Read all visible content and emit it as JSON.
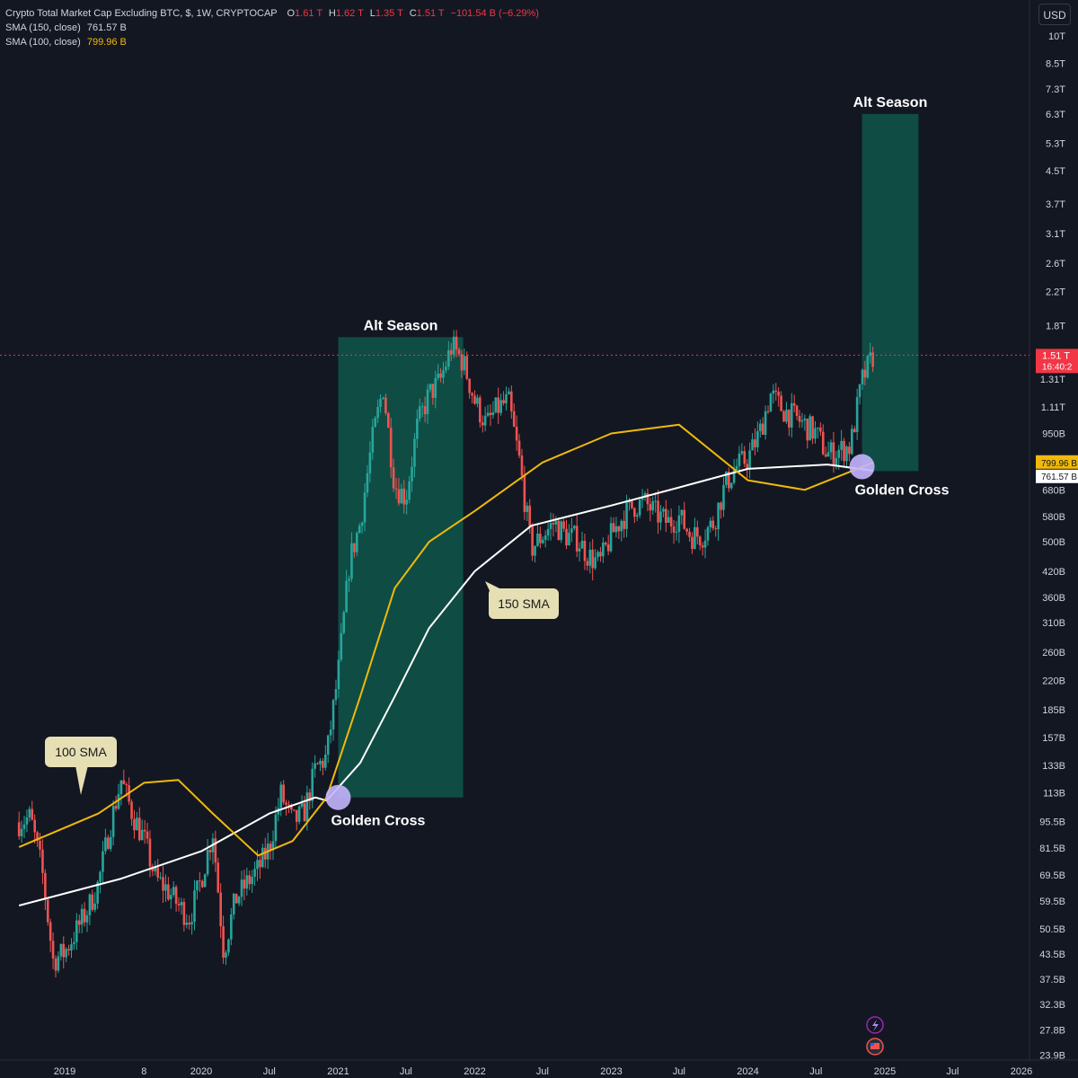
{
  "header": {
    "symbol_title": "Crypto Total Market Cap Excluding BTC, $, 1W, CRYPTOCAP",
    "ohlc": {
      "o_label": "O",
      "o_value": "1.61 T",
      "h_label": "H",
      "h_value": "1.62 T",
      "l_label": "L",
      "l_value": "1.35 T",
      "c_label": "C",
      "c_value": "1.51 T",
      "change": "−101.54 B (−6.29%)"
    },
    "sma150_label": "SMA (150, close)",
    "sma150_value": "761.57 B",
    "sma100_label": "SMA (100, close)",
    "sma100_value": "799.96 B"
  },
  "currency_button": "USD",
  "colors": {
    "background": "#131722",
    "up": "#26a69a",
    "down": "#ef5350",
    "sma150": "#ffffff",
    "sma100": "#f0b90b",
    "alt_season_box": "#0f4f47",
    "golden_cross_marker": "#c4b5fd",
    "callout_fill": "#e6dfb4"
  },
  "price_badge": {
    "value": "1.51 T",
    "countdown": "16:40:2"
  },
  "sma_badges": {
    "sma100": "799.96 B",
    "sma150": "761.57 B"
  },
  "chart_data": {
    "type": "candlestick",
    "timeframe": "1W",
    "y_scale": "log",
    "y_ticks": [
      "10T",
      "8.5T",
      "7.3T",
      "6.3T",
      "5.3T",
      "4.5T",
      "3.7T",
      "3.1T",
      "2.6T",
      "2.2T",
      "1.8T",
      "1.31T",
      "1.11T",
      "950B",
      "680B",
      "580B",
      "500B",
      "420B",
      "360B",
      "310B",
      "260B",
      "220B",
      "185B",
      "157B",
      "133B",
      "113B",
      "95.5B",
      "81.5B",
      "69.5B",
      "59.5B",
      "50.5B",
      "43.5B",
      "37.5B",
      "32.3B",
      "27.8B",
      "23.9B"
    ],
    "x_ticks": [
      "2019",
      "8",
      "2020",
      "Jul",
      "2021",
      "Jul",
      "2022",
      "Jul",
      "2023",
      "Jul",
      "2024",
      "Jul",
      "2025",
      "Jul",
      "2026"
    ],
    "close_path_billion": [
      {
        "date": "2018-09",
        "value": 95
      },
      {
        "date": "2018-10",
        "value": 98
      },
      {
        "date": "2018-11",
        "value": 72
      },
      {
        "date": "2018-12",
        "value": 42
      },
      {
        "date": "2019-01",
        "value": 44
      },
      {
        "date": "2019-02",
        "value": 50
      },
      {
        "date": "2019-03",
        "value": 56
      },
      {
        "date": "2019-04",
        "value": 66
      },
      {
        "date": "2019-05",
        "value": 92
      },
      {
        "date": "2019-06",
        "value": 122
      },
      {
        "date": "2019-07",
        "value": 100
      },
      {
        "date": "2019-08",
        "value": 86
      },
      {
        "date": "2019-09",
        "value": 68
      },
      {
        "date": "2019-10",
        "value": 64
      },
      {
        "date": "2019-11",
        "value": 58
      },
      {
        "date": "2019-12",
        "value": 54
      },
      {
        "date": "2020-01",
        "value": 68
      },
      {
        "date": "2020-02",
        "value": 90
      },
      {
        "date": "2020-03",
        "value": 44
      },
      {
        "date": "2020-04",
        "value": 60
      },
      {
        "date": "2020-05",
        "value": 66
      },
      {
        "date": "2020-06",
        "value": 72
      },
      {
        "date": "2020-07",
        "value": 82
      },
      {
        "date": "2020-08",
        "value": 112
      },
      {
        "date": "2020-09",
        "value": 95
      },
      {
        "date": "2020-10",
        "value": 100
      },
      {
        "date": "2020-11",
        "value": 130
      },
      {
        "date": "2020-12",
        "value": 140
      },
      {
        "date": "2021-01",
        "value": 230
      },
      {
        "date": "2021-02",
        "value": 450
      },
      {
        "date": "2021-03",
        "value": 560
      },
      {
        "date": "2021-04",
        "value": 900
      },
      {
        "date": "2021-05",
        "value": 1250
      },
      {
        "date": "2021-06",
        "value": 700
      },
      {
        "date": "2021-07",
        "value": 650
      },
      {
        "date": "2021-08",
        "value": 1000
      },
      {
        "date": "2021-09",
        "value": 1200
      },
      {
        "date": "2021-10",
        "value": 1300
      },
      {
        "date": "2021-11",
        "value": 1600
      },
      {
        "date": "2021-12",
        "value": 1450
      },
      {
        "date": "2022-01",
        "value": 1150
      },
      {
        "date": "2022-02",
        "value": 1000
      },
      {
        "date": "2022-03",
        "value": 1100
      },
      {
        "date": "2022-04",
        "value": 1150
      },
      {
        "date": "2022-05",
        "value": 800
      },
      {
        "date": "2022-06",
        "value": 480
      },
      {
        "date": "2022-07",
        "value": 520
      },
      {
        "date": "2022-08",
        "value": 560
      },
      {
        "date": "2022-09",
        "value": 520
      },
      {
        "date": "2022-10",
        "value": 510
      },
      {
        "date": "2022-11",
        "value": 460
      },
      {
        "date": "2022-12",
        "value": 440
      },
      {
        "date": "2023-01",
        "value": 520
      },
      {
        "date": "2023-02",
        "value": 580
      },
      {
        "date": "2023-03",
        "value": 620
      },
      {
        "date": "2023-04",
        "value": 630
      },
      {
        "date": "2023-05",
        "value": 590
      },
      {
        "date": "2023-06",
        "value": 560
      },
      {
        "date": "2023-07",
        "value": 580
      },
      {
        "date": "2023-08",
        "value": 520
      },
      {
        "date": "2023-09",
        "value": 520
      },
      {
        "date": "2023-10",
        "value": 560
      },
      {
        "date": "2023-11",
        "value": 700
      },
      {
        "date": "2023-12",
        "value": 780
      },
      {
        "date": "2024-01",
        "value": 820
      },
      {
        "date": "2024-02",
        "value": 950
      },
      {
        "date": "2024-03",
        "value": 1200
      },
      {
        "date": "2024-04",
        "value": 1100
      },
      {
        "date": "2024-05",
        "value": 1050
      },
      {
        "date": "2024-06",
        "value": 1000
      },
      {
        "date": "2024-07",
        "value": 950
      },
      {
        "date": "2024-08",
        "value": 840
      },
      {
        "date": "2024-09",
        "value": 860
      },
      {
        "date": "2024-10",
        "value": 880
      },
      {
        "date": "2024-11",
        "value": 1300
      },
      {
        "date": "2024-12",
        "value": 1510
      }
    ],
    "sma150_billion": [
      {
        "date": "2018-09",
        "value": 58
      },
      {
        "date": "2019-06",
        "value": 68
      },
      {
        "date": "2020-01",
        "value": 80
      },
      {
        "date": "2020-07",
        "value": 100
      },
      {
        "date": "2020-11",
        "value": 110
      },
      {
        "date": "2020-12",
        "value": 108
      },
      {
        "date": "2021-03",
        "value": 135
      },
      {
        "date": "2021-06",
        "value": 200
      },
      {
        "date": "2021-09",
        "value": 300
      },
      {
        "date": "2022-01",
        "value": 420
      },
      {
        "date": "2022-06",
        "value": 550
      },
      {
        "date": "2023-01",
        "value": 620
      },
      {
        "date": "2023-07",
        "value": 690
      },
      {
        "date": "2024-01",
        "value": 770
      },
      {
        "date": "2024-08",
        "value": 790
      },
      {
        "date": "2024-12",
        "value": 761.57
      }
    ],
    "sma100_billion": [
      {
        "date": "2018-09",
        "value": 82
      },
      {
        "date": "2019-04",
        "value": 100
      },
      {
        "date": "2019-08",
        "value": 120
      },
      {
        "date": "2019-11",
        "value": 122
      },
      {
        "date": "2020-02",
        "value": 100
      },
      {
        "date": "2020-06",
        "value": 78
      },
      {
        "date": "2020-09",
        "value": 85
      },
      {
        "date": "2020-12",
        "value": 110
      },
      {
        "date": "2021-03",
        "value": 200
      },
      {
        "date": "2021-06",
        "value": 380
      },
      {
        "date": "2021-09",
        "value": 500
      },
      {
        "date": "2022-01",
        "value": 600
      },
      {
        "date": "2022-07",
        "value": 800
      },
      {
        "date": "2023-01",
        "value": 950
      },
      {
        "date": "2023-07",
        "value": 1000
      },
      {
        "date": "2024-01",
        "value": 720
      },
      {
        "date": "2024-06",
        "value": 680
      },
      {
        "date": "2024-12",
        "value": 799.96
      }
    ],
    "current_price_line_billion": 1510,
    "alt_season_boxes": [
      {
        "label": "Alt Season",
        "start": "2021-01",
        "end": "2021-12",
        "low_billion": 110,
        "high_billion": 1680
      },
      {
        "label": "Alt Season",
        "start": "2024-11",
        "end": "2025-04",
        "low_billion": 760,
        "high_billion": 6300
      }
    ],
    "golden_cross_markers": [
      {
        "label": "Golden Cross",
        "date": "2021-01",
        "value_billion": 110
      },
      {
        "label": "Golden Cross",
        "date": "2024-11",
        "value_billion": 780
      }
    ],
    "callouts": [
      {
        "label": "100 SMA",
        "target": "sma100"
      },
      {
        "label": "150 SMA",
        "target": "sma150"
      }
    ]
  }
}
